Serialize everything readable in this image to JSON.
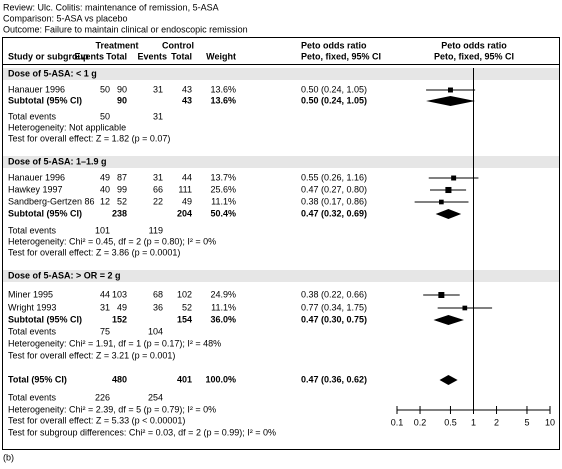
{
  "header": {
    "review": "Review: Ulc. Colitis: maintenance of remission, 5-ASA",
    "comparison": "Comparison: 5-ASA vs placebo",
    "outcome": "Outcome: Failure to maintain clinical or endoscopic remission"
  },
  "table": {
    "groups": {
      "treatment": "Treatment",
      "control": "Control",
      "or_text": "Peto odds ratio",
      "or_plot": "Peto odds ratio"
    },
    "columns": [
      "Study or subgroup",
      "Events",
      "Total",
      "Events",
      "Total",
      "Weight",
      "Peto, fixed, 95% CI",
      "Peto, fixed, 95% CI"
    ],
    "rows": [
      {
        "kind": "group",
        "cells": [
          "Dose of 5-ASA: < 1 g"
        ]
      },
      {
        "kind": "study",
        "cells": [
          "Hanauer 1996",
          "50",
          "90",
          "31",
          "43",
          "13.6%",
          "0.50 (0.24, 1.05)"
        ],
        "estimate": {
          "or": 0.5,
          "lo": 0.24,
          "hi": 1.05,
          "weight": 13.6
        }
      },
      {
        "kind": "subtotal",
        "cells": [
          "Subtotal (95% CI)",
          null,
          "90",
          null,
          "43",
          "13.6%",
          "0.50 (0.24, 1.05)"
        ],
        "estimate": {
          "or": 0.5,
          "lo": 0.24,
          "hi": 1.05
        }
      },
      {
        "kind": "note",
        "cells": [
          "Total events",
          "50",
          null,
          "31"
        ]
      },
      {
        "kind": "note",
        "cells": [
          "Heterogeneity: Not applicable"
        ]
      },
      {
        "kind": "note",
        "cells": [
          "Test for overall effect: Z = 1.82 (p = 0.07)"
        ]
      },
      {
        "kind": "group",
        "cells": [
          "Dose of 5-ASA: 1–1.9 g"
        ]
      },
      {
        "kind": "study",
        "cells": [
          "Hanauer 1996",
          "49",
          "87",
          "31",
          "44",
          "13.7%",
          "0.55 (0.26, 1.16)"
        ],
        "estimate": {
          "or": 0.55,
          "lo": 0.26,
          "hi": 1.16,
          "weight": 13.7
        }
      },
      {
        "kind": "study",
        "cells": [
          "Hawkey 1997",
          "40",
          "99",
          "66",
          "111",
          "25.6%",
          "0.47 (0.27, 0.80)"
        ],
        "estimate": {
          "or": 0.47,
          "lo": 0.27,
          "hi": 0.8,
          "weight": 25.6
        }
      },
      {
        "kind": "study",
        "cells": [
          "Sandberg-Gertzen 86",
          "12",
          "52",
          "22",
          "49",
          "11.1%",
          "0.38 (0.17, 0.86)"
        ],
        "estimate": {
          "or": 0.38,
          "lo": 0.17,
          "hi": 0.86,
          "weight": 11.1
        }
      },
      {
        "kind": "subtotal",
        "cells": [
          "Subtotal (95% CI)",
          null,
          "238",
          null,
          "204",
          "50.4%",
          "0.47 (0.32, 0.69)"
        ],
        "estimate": {
          "or": 0.47,
          "lo": 0.32,
          "hi": 0.69
        }
      },
      {
        "kind": "note",
        "cells": [
          "Total events",
          "101",
          null,
          "119"
        ]
      },
      {
        "kind": "note",
        "cells": [
          "Heterogeneity: Chi² = 0.45, df = 2 (p = 0.80); I² = 0%"
        ]
      },
      {
        "kind": "note",
        "cells": [
          "Test for overall effect: Z = 3.86 (p = 0.0001)"
        ]
      },
      {
        "kind": "group",
        "cells": [
          "Dose of 5-ASA: > OR = 2 g"
        ]
      },
      {
        "kind": "study",
        "cells": [
          "Miner 1995",
          "44",
          "103",
          "68",
          "102",
          "24.9%",
          "0.38 (0.22, 0.66)"
        ],
        "estimate": {
          "or": 0.38,
          "lo": 0.22,
          "hi": 0.66,
          "weight": 24.9
        }
      },
      {
        "kind": "study",
        "cells": [
          "Wright 1993",
          "31",
          "49",
          "36",
          "52",
          "11.1%",
          "0.77 (0.34, 1.75)"
        ],
        "estimate": {
          "or": 0.77,
          "lo": 0.34,
          "hi": 1.75,
          "weight": 11.1
        }
      },
      {
        "kind": "subtotal",
        "cells": [
          "Subtotal (95% CI)",
          null,
          "152",
          null,
          "154",
          "36.0%",
          "0.47 (0.30, 0.75)"
        ],
        "estimate": {
          "or": 0.47,
          "lo": 0.3,
          "hi": 0.75
        }
      },
      {
        "kind": "note",
        "cells": [
          "Total events",
          "75",
          null,
          "104"
        ]
      },
      {
        "kind": "note",
        "cells": [
          "Heterogeneity: Chi² = 1.91, df = 1 (p = 0.17); I² = 48%"
        ]
      },
      {
        "kind": "note",
        "cells": [
          "Test for overall effect: Z = 3.21 (p = 0.001)"
        ]
      },
      {
        "kind": "subtotal",
        "cells": [
          "Total (95% CI)",
          null,
          "480",
          null,
          "401",
          "100.0%",
          "0.47 (0.36, 0.62)"
        ],
        "estimate": {
          "or": 0.47,
          "lo": 0.36,
          "hi": 0.62
        }
      },
      {
        "kind": "note",
        "cells": [
          "Total events",
          "226",
          null,
          "254"
        ]
      },
      {
        "kind": "note",
        "cells": [
          "Heterogeneity: Chi² = 2.39, df = 5 (p = 0.79); I² = 0%"
        ]
      },
      {
        "kind": "note",
        "cells": [
          "Test for overall effect: Z = 5.33 (p < 0.00001)"
        ]
      },
      {
        "kind": "note",
        "cells": [
          "Test for subgroup differences: Chi² = 0.03, df = 2 (p = 0.99); I² = 0%"
        ]
      }
    ]
  },
  "forest_plot": {
    "type": "forest",
    "log_scale": true,
    "xlim": [
      0.1,
      10
    ],
    "xticks": [
      0.1,
      0.2,
      0.5,
      1,
      2,
      5,
      10
    ],
    "reference": 1,
    "color": "#000000"
  },
  "caption": "(b)"
}
